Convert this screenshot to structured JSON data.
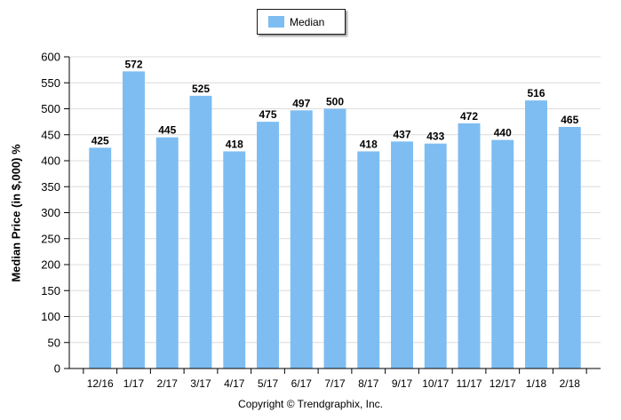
{
  "chart_data": {
    "type": "bar",
    "categories": [
      "12/16",
      "1/17",
      "2/17",
      "3/17",
      "4/17",
      "5/17",
      "6/17",
      "7/17",
      "8/17",
      "9/17",
      "10/17",
      "11/17",
      "12/17",
      "1/18",
      "2/18"
    ],
    "series": [
      {
        "name": "Median",
        "values": [
          425,
          572,
          445,
          525,
          418,
          475,
          497,
          500,
          418,
          437,
          433,
          472,
          440,
          516,
          465
        ],
        "color": "#7dbdf2"
      }
    ],
    "ylabel": "Median Price (in $,000) %",
    "xlabel": "",
    "ylim": [
      0,
      600
    ],
    "yticks": [
      0,
      50,
      100,
      150,
      200,
      250,
      300,
      350,
      400,
      450,
      500,
      550,
      600
    ],
    "grid": true,
    "legend": "top-center"
  },
  "footer": {
    "copyright": "Copyright © Trendgraphix, Inc."
  },
  "colors": {
    "bar": "#7dbdf2",
    "grid": "#dcdcdc",
    "axis": "#000000"
  }
}
